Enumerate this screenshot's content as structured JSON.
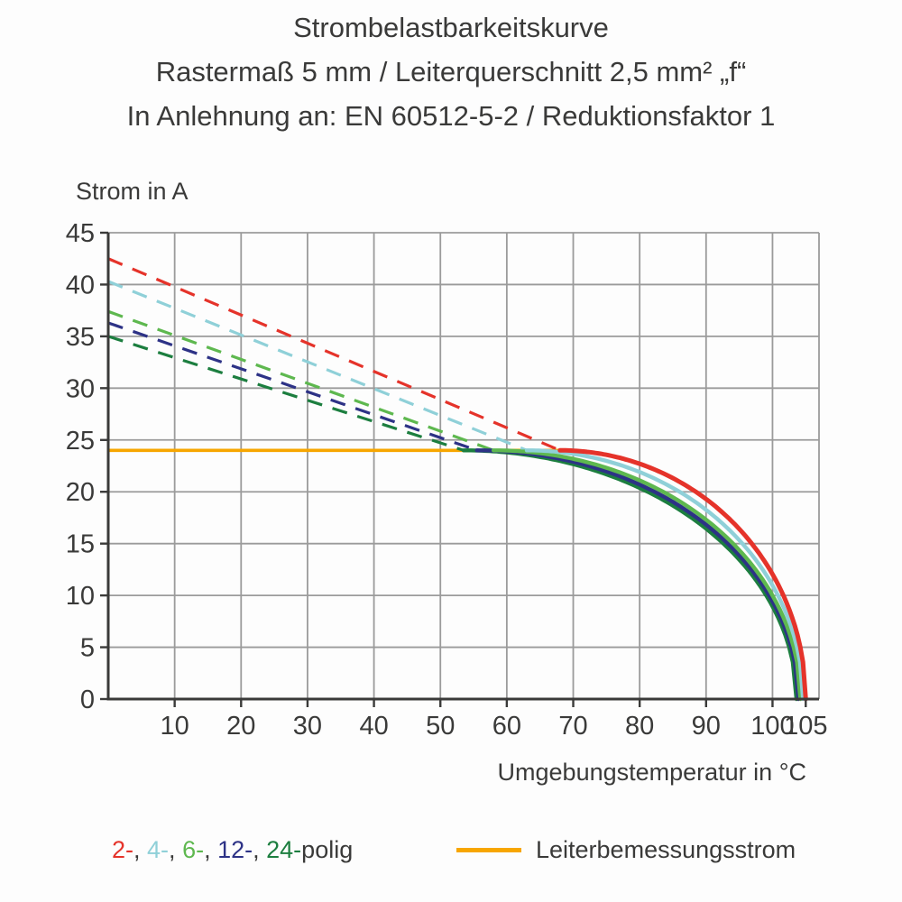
{
  "title": {
    "line1": "Strombelastbarkeitskurve",
    "line2": "Rastermaß 5 mm / Leiterquerschnitt 2,5 mm² „f“",
    "line3": "In Anlehnung an: EN 60512-5-2 / Reduktionsfaktor 1"
  },
  "legend": {
    "poles": [
      {
        "label": "2-",
        "color": "#e5332a"
      },
      {
        "label": "4-",
        "color": "#8fd0d8"
      },
      {
        "label": "6-",
        "color": "#5eb84f"
      },
      {
        "label": "12-",
        "color": "#2d3286"
      },
      {
        "label": "24-",
        "color": "#1c7e3f"
      }
    ],
    "separator": ", ",
    "poles_suffix": "polig",
    "rated_label": "Leiterbemessungsstrom",
    "rated_color": "#f7a600"
  },
  "chart_data": {
    "type": "line",
    "title": "Strombelastbarkeitskurve",
    "ylabel": "Strom in A",
    "xlabel": "Umgebungstemperatur in °C",
    "xlim": [
      0,
      107
    ],
    "ylim": [
      0,
      45
    ],
    "xticks": [
      10,
      20,
      30,
      40,
      50,
      60,
      70,
      80,
      90,
      100,
      105
    ],
    "yticks": [
      0,
      5,
      10,
      15,
      20,
      25,
      30,
      35,
      40,
      45
    ],
    "grid": true,
    "rated_current_A": 24,
    "series": [
      {
        "name": "2-polig",
        "color": "#e5332a",
        "current_at_0C": 42.5,
        "derate_start_C": 68,
        "max_temp_C": 105,
        "style": "dashed-then-solid"
      },
      {
        "name": "4-polig",
        "color": "#8fd0d8",
        "current_at_0C": 40.3,
        "derate_start_C": 63,
        "max_temp_C": 104.6,
        "style": "dashed-then-solid"
      },
      {
        "name": "6-polig",
        "color": "#5eb84f",
        "current_at_0C": 37.4,
        "derate_start_C": 58,
        "max_temp_C": 104.2,
        "style": "dashed-then-solid"
      },
      {
        "name": "12-polig",
        "color": "#2d3286",
        "current_at_0C": 36.3,
        "derate_start_C": 55.5,
        "max_temp_C": 103.9,
        "style": "dashed-then-solid"
      },
      {
        "name": "24-polig",
        "color": "#1c7e3f",
        "current_at_0C": 35.0,
        "derate_start_C": 53.5,
        "max_temp_C": 103.6,
        "style": "dashed-then-solid"
      }
    ],
    "annotations": [
      {
        "name": "rated-current-line",
        "type": "hline",
        "y": 24,
        "x_from": 0,
        "x_to": 68,
        "color": "#f7a600"
      }
    ],
    "legend_position": "bottom"
  }
}
